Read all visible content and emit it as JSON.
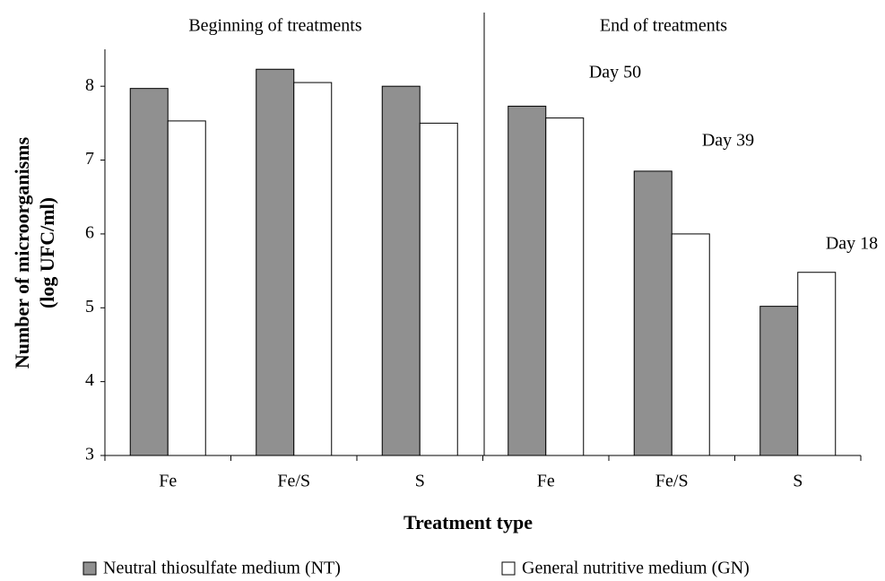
{
  "chart_data": {
    "type": "bar",
    "sections": [
      "Beginning of treatments",
      "End of treatments"
    ],
    "annotations": [
      "Day 50",
      "Day 39",
      "Day 18"
    ],
    "x_label": "Treatment type",
    "y_label": [
      "Number of microorganisms",
      "(log UFC/ml)"
    ],
    "categories": [
      "Fe",
      "Fe/S",
      "S",
      "Fe",
      "Fe/S",
      "S"
    ],
    "series": [
      {
        "name": "Neutral thiosulfate medium (NT)",
        "color": "#909090",
        "values": [
          7.97,
          8.23,
          8.0,
          7.73,
          6.85,
          5.02
        ]
      },
      {
        "name": "General nutritive medium (GN)",
        "color": "#ffffff",
        "values": [
          7.53,
          8.05,
          7.5,
          7.57,
          6.0,
          5.48
        ]
      }
    ],
    "ylim": [
      3,
      8.5
    ],
    "yticks": [
      3,
      4,
      5,
      6,
      7,
      8
    ],
    "grid": false
  }
}
